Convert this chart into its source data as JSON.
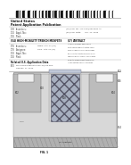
{
  "background_color": "#ffffff",
  "barcode_color": "#111111",
  "text_color": "#444444",
  "dark_text": "#111111",
  "mid_text": "#666666",
  "diagram": {
    "outer_bg": "#e8e8e8",
    "substrate_color": "#b0b0b0",
    "substrate_label": "N+ Substrate",
    "nepi_color": "#d8d8d8",
    "nepi_label": "N- Epi",
    "pbody_color": "#bcbcbc",
    "nsource_color": "#f0f0f0",
    "trench_fill_color": "#a8b0c0",
    "metal_color": "#c0c8d8",
    "oxide_color": "#d4d4d4",
    "label_802": "802",
    "label_804": "804",
    "label_806": "806",
    "label_808": "808",
    "label_810": "810",
    "label_812": "812",
    "label_814": "814"
  },
  "header": {
    "line1": "United States",
    "line2": "Patent Application Publication",
    "pub_no": "(10) Pub. No.: US 2013/0001234 A1",
    "pub_date": "(43) Pub. Date:      Jan. 17, 2013",
    "title": "(54) HIGH-MOBILITY TRENCH MOSFETS",
    "abstract_head": "ABSTRACT",
    "fig_caption": "FIG. 1"
  }
}
